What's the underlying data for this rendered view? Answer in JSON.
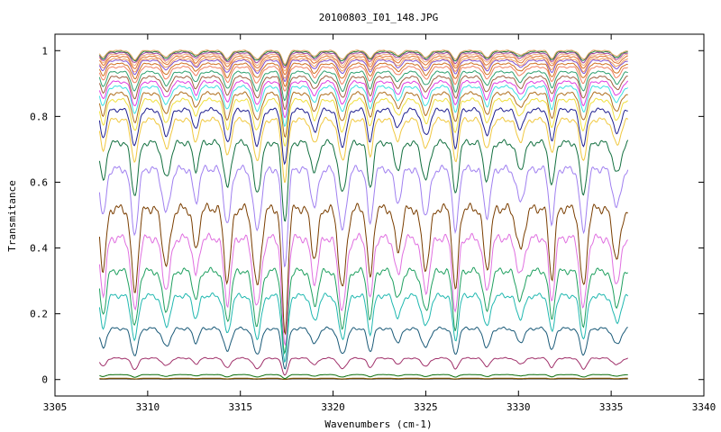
{
  "chart_data": {
    "type": "line",
    "title": "20100803_I01_148.JPG",
    "xlabel": "Wavenumbers (cm-1)",
    "ylabel": "Transmitance",
    "xlim": [
      3305,
      3340
    ],
    "ylim": [
      -0.05,
      1.05
    ],
    "x_ticks": [
      "3305",
      "3310",
      "3315",
      "3320",
      "3325",
      "3330",
      "3335",
      "3340"
    ],
    "y_ticks": [
      "0",
      "0.2",
      "0.4",
      "0.6",
      "0.8",
      "1"
    ],
    "x_range_data": [
      3307.4,
      3335.9
    ],
    "grid": false,
    "legend": "none",
    "absorption_lines": [
      3307.6,
      3309.3,
      3311.0,
      3312.6,
      3314.3,
      3315.9,
      3317.4,
      3319.0,
      3320.5,
      3322.0,
      3323.5,
      3325.0,
      3326.6,
      3328.3,
      3330.1,
      3331.8,
      3333.5,
      3335.3
    ],
    "series": [
      {
        "baseline": 0.002,
        "color": "#2b2b2b"
      },
      {
        "baseline": 0.004,
        "color": "#8b5a00"
      },
      {
        "baseline": 0.015,
        "color": "#0a6e0a"
      },
      {
        "baseline": 0.065,
        "color": "#a0306a"
      },
      {
        "baseline": 0.155,
        "color": "#1a5a78"
      },
      {
        "baseline": 0.255,
        "color": "#20b8b0"
      },
      {
        "baseline": 0.33,
        "color": "#20a060"
      },
      {
        "baseline": 0.43,
        "color": "#e070e0"
      },
      {
        "baseline": 0.52,
        "color": "#7a3e00"
      },
      {
        "baseline": 0.64,
        "color": "#a080f0"
      },
      {
        "baseline": 0.72,
        "color": "#137040"
      },
      {
        "baseline": 0.79,
        "color": "#f0c840"
      },
      {
        "baseline": 0.82,
        "color": "#202090"
      },
      {
        "baseline": 0.85,
        "color": "#f0e040"
      },
      {
        "baseline": 0.87,
        "color": "#b07020"
      },
      {
        "baseline": 0.89,
        "color": "#40e0e0"
      },
      {
        "baseline": 0.905,
        "color": "#e040e0"
      },
      {
        "baseline": 0.92,
        "color": "#a06040"
      },
      {
        "baseline": 0.935,
        "color": "#30a070"
      },
      {
        "baseline": 0.95,
        "color": "#f08060"
      },
      {
        "baseline": 0.96,
        "color": "#d07020"
      },
      {
        "baseline": 0.97,
        "color": "#8050d0"
      },
      {
        "baseline": 0.975,
        "color": "#f0a060"
      },
      {
        "baseline": 0.982,
        "color": "#e07030"
      },
      {
        "baseline": 0.988,
        "color": "#f0b080"
      },
      {
        "baseline": 0.993,
        "color": "#a040a0"
      },
      {
        "baseline": 0.997,
        "color": "#208040"
      },
      {
        "baseline": 1.0,
        "color": "#e0a060"
      }
    ]
  }
}
